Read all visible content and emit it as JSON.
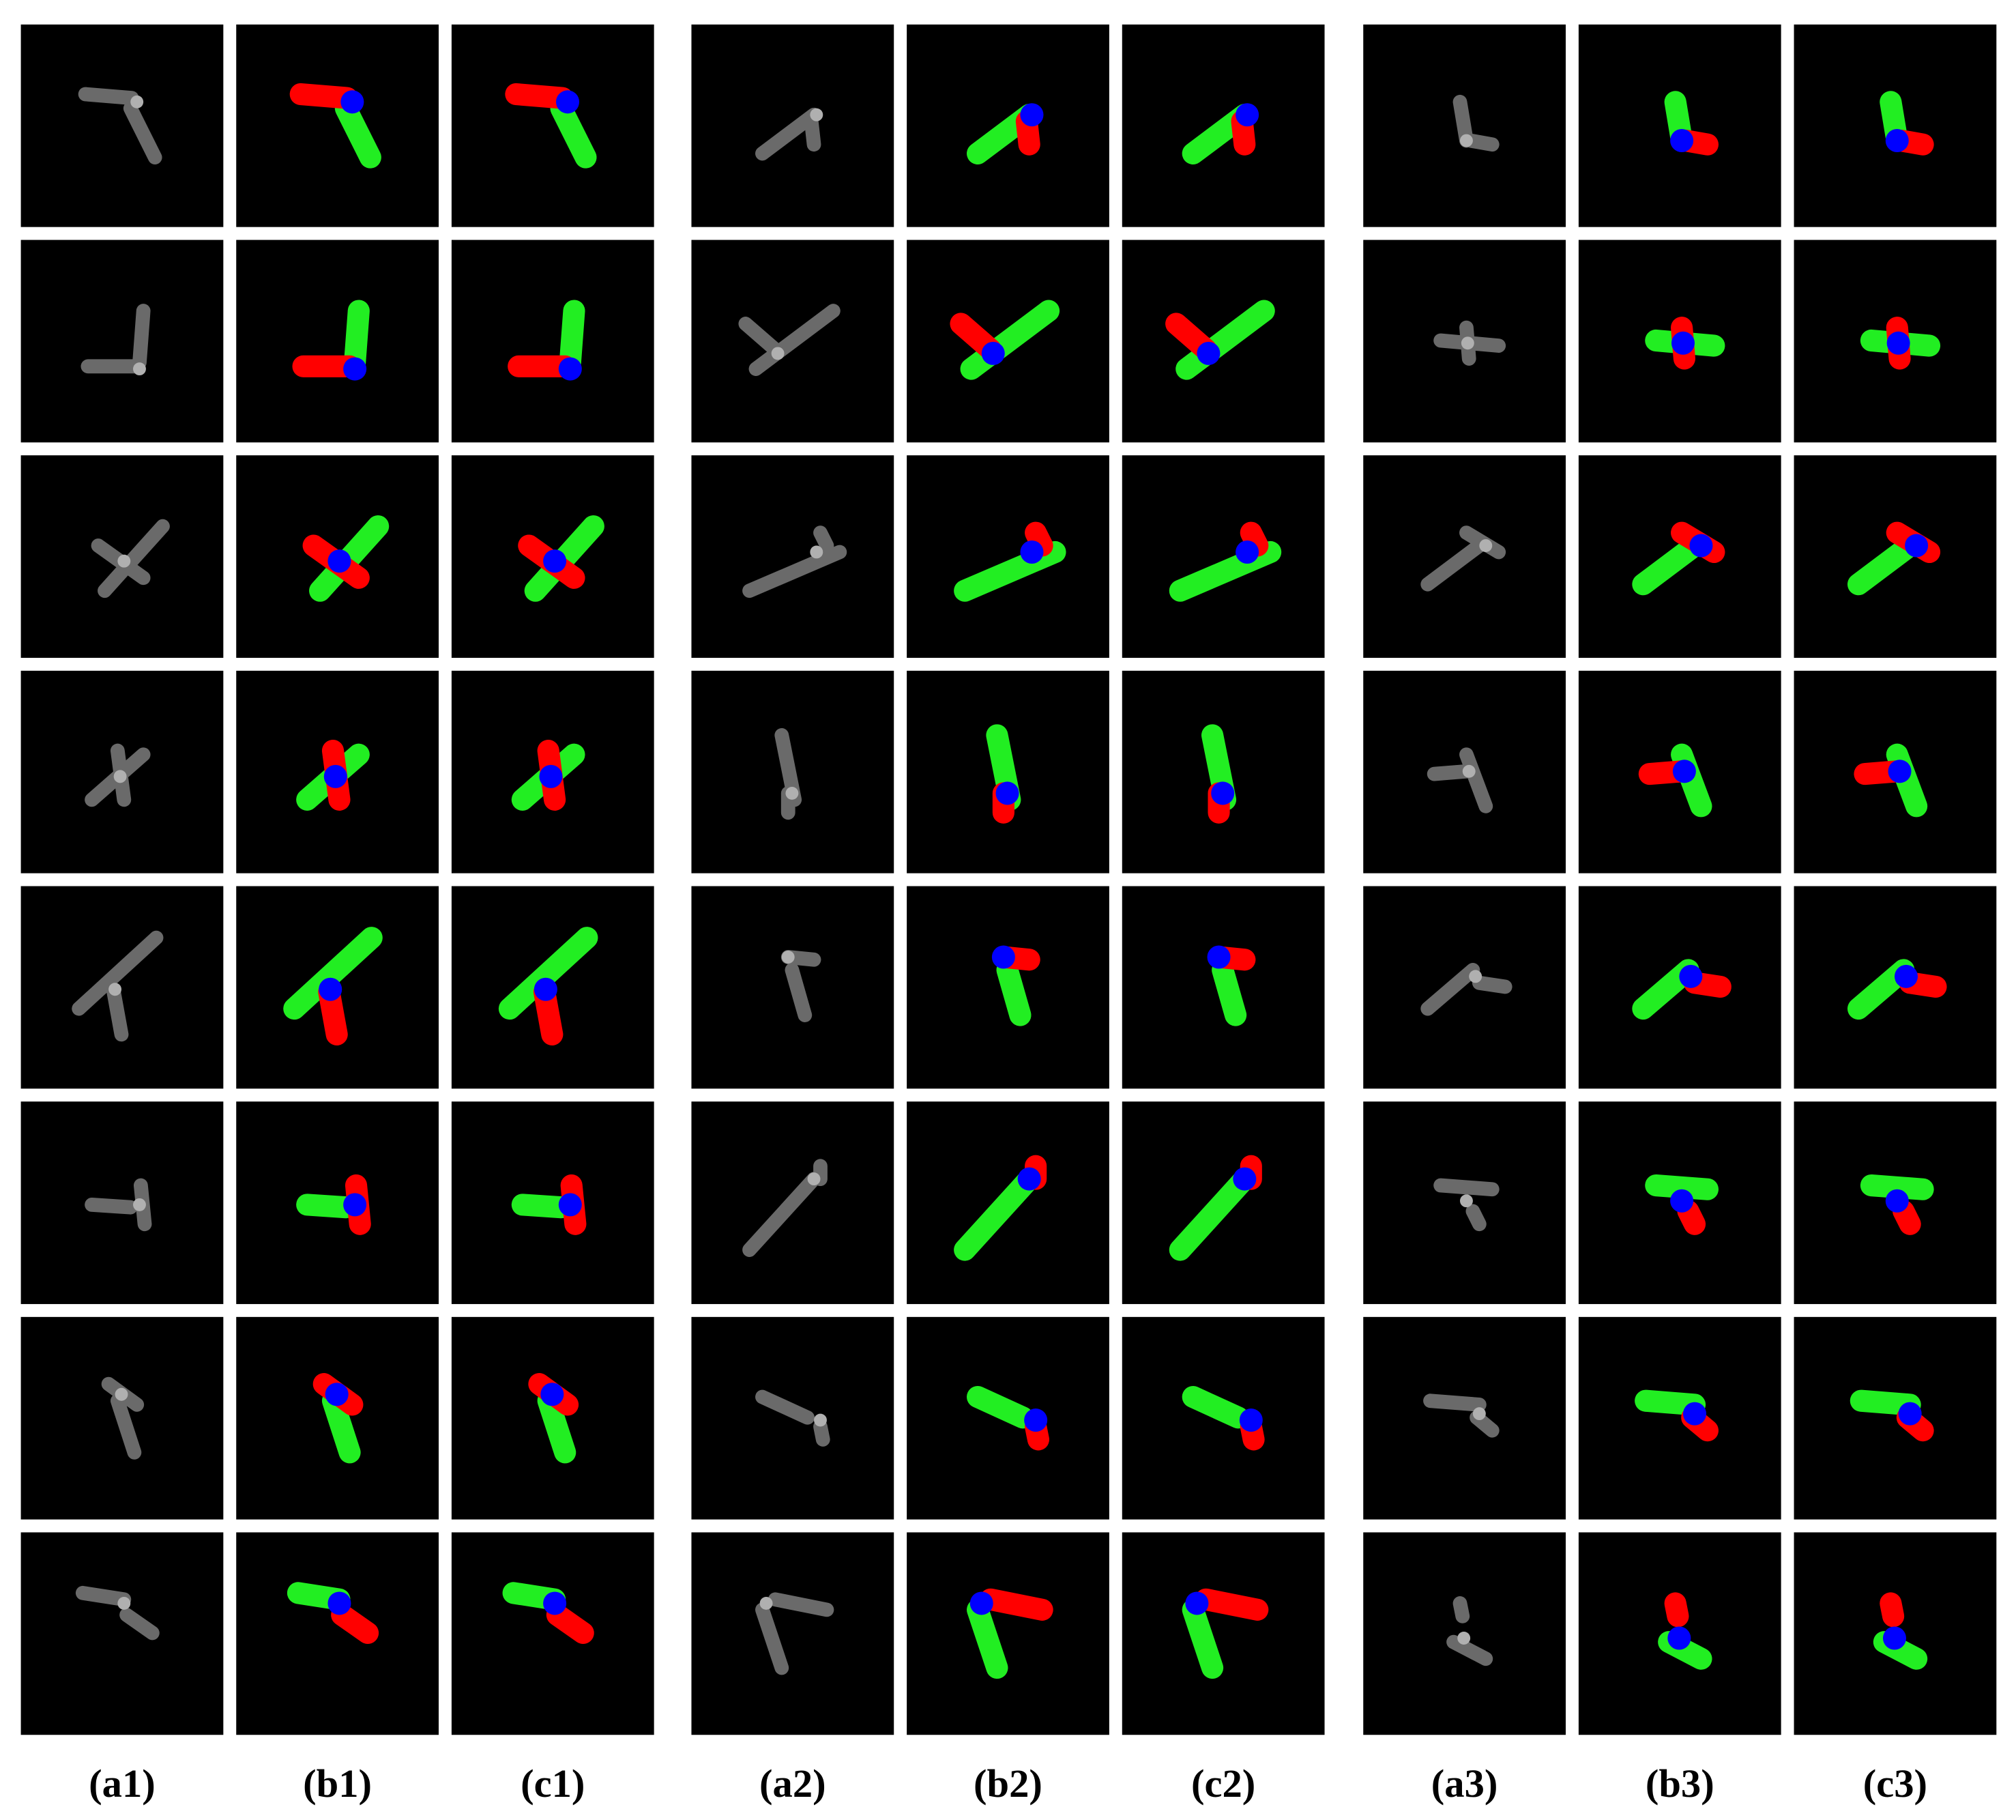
{
  "panel_labels": [
    "(a1)",
    "(b1)",
    "(c1)",
    "(a2)",
    "(b2)",
    "(c2)",
    "(a3)",
    "(b3)",
    "(c3)"
  ]
}
